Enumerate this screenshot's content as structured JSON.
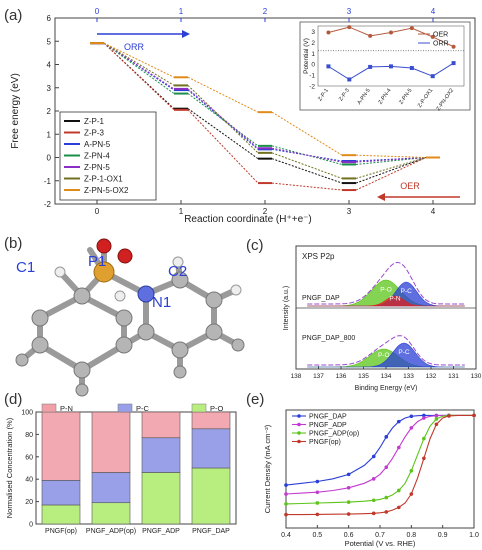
{
  "panels": {
    "a": {
      "label": "(a)"
    },
    "b": {
      "label": "(b)"
    },
    "c": {
      "label": "(c)"
    },
    "d": {
      "label": "(d)"
    },
    "e": {
      "label": "(e)"
    }
  },
  "colors": {
    "axis_blue": "#2b3fd6",
    "tick_red": "#c0392b",
    "oer_line": "#b45a3c",
    "orr_line": "#3a4fd0",
    "p_n": "#f2a0a8",
    "p_c": "#9aa0e8",
    "p_o": "#b8ee80",
    "pngf_dap": "#2b3fd6",
    "pngf_adp": "#c23ad0",
    "pngf_adp_op": "#5cc41a",
    "pngf_op": "#c0392b"
  },
  "chart_data": [
    {
      "id": "a",
      "type": "line",
      "xlabel": "Reaction coordinate (H⁺+e⁻)",
      "ylabel": "Free energy (eV)",
      "x_top_ticks": [
        "0",
        "1",
        "2",
        "3",
        "4"
      ],
      "x_bottom_ticks": [
        "0",
        "1",
        "2",
        "3",
        "4"
      ],
      "y_ticks": [
        "-2",
        "-1",
        "0",
        "1",
        "2",
        "3",
        "4",
        "5",
        "6"
      ],
      "ylim": [
        -2,
        6
      ],
      "xlim": [
        -0.5,
        4.5
      ],
      "arrow_labels": {
        "orr": "ORR",
        "oer": "OER"
      },
      "series": [
        {
          "name": "Z-P-1",
          "color": "#111111",
          "values": [
            4.92,
            2.1,
            -0.05,
            -1.1,
            0
          ]
        },
        {
          "name": "Z-P-3",
          "color": "#c0392b",
          "values": [
            4.92,
            2.05,
            -1.1,
            -1.4,
            0
          ]
        },
        {
          "name": "A-PN-5",
          "color": "#2b3fd6",
          "values": [
            4.92,
            2.9,
            0.35,
            -0.15,
            0
          ]
        },
        {
          "name": "Z-PN-4",
          "color": "#1b8f4a",
          "values": [
            4.92,
            2.75,
            0.5,
            -0.3,
            0
          ]
        },
        {
          "name": "Z-PN-5",
          "color": "#8a2fc4",
          "values": [
            4.92,
            2.95,
            0.4,
            -0.2,
            0
          ]
        },
        {
          "name": "Z-P-1-OX1",
          "color": "#707020",
          "values": [
            4.92,
            3.1,
            0.2,
            -0.9,
            0
          ]
        },
        {
          "name": "Z-PN-5-OX2",
          "color": "#e08a1a",
          "values": [
            4.92,
            3.45,
            1.95,
            0.1,
            0
          ]
        }
      ],
      "inset": {
        "ylabel": "Potential (V)",
        "y_ticks": [
          "-2",
          "-1",
          "0",
          "1",
          "2",
          "3"
        ],
        "ylim": [
          -2,
          3.5
        ],
        "categories": [
          "Z-P-1",
          "Z-P-3",
          "A-PN-5",
          "Z-PN-4",
          "Z-PN-5",
          "Z-P-OX1",
          "Z-PN-OX2"
        ],
        "series": [
          {
            "name": "OER",
            "values": [
              2.9,
              3.4,
              2.6,
              2.9,
              3.3,
              2.5,
              1.6
            ]
          },
          {
            "name": "ORR",
            "values": [
              -0.2,
              -1.4,
              -0.25,
              -0.2,
              -0.35,
              -1.1,
              0.1
            ]
          }
        ],
        "reference_line": 1.23
      }
    },
    {
      "id": "c",
      "type": "area",
      "title": "XPS P2p",
      "xlabel": "Binding Energy (eV)",
      "ylabel": "Intensity (a.u.)",
      "x_ticks": [
        "138",
        "137",
        "136",
        "135",
        "134",
        "133",
        "132",
        "131",
        "130"
      ],
      "xlim": [
        138,
        130
      ],
      "spectra": [
        {
          "name": "PNGF_DAP",
          "components": [
            {
              "name": "P-O",
              "center": 134.0,
              "color": "#5cc41a"
            },
            {
              "name": "P-C",
              "center": 133.1,
              "color": "#2b3fd6"
            },
            {
              "name": "P-N",
              "center": 133.6,
              "color": "#e02020"
            }
          ]
        },
        {
          "name": "PNGF_DAP_800",
          "components": [
            {
              "name": "P-O",
              "center": 134.1,
              "color": "#5cc41a"
            },
            {
              "name": "P-C",
              "center": 133.2,
              "color": "#2b3fd6"
            }
          ]
        }
      ]
    },
    {
      "id": "d",
      "type": "bar",
      "ylabel": "Normalised Concentration (%)",
      "categories": [
        "PNGF(op)",
        "PNGF_ADP(op)",
        "PNGF_ADP",
        "PNGF_DAP"
      ],
      "y_ticks": [
        "0",
        "20",
        "40",
        "60",
        "80",
        "100"
      ],
      "ylim": [
        0,
        100
      ],
      "stacked": true,
      "series": [
        {
          "name": "P-O",
          "values": [
            17,
            19,
            46,
            50
          ]
        },
        {
          "name": "P-C",
          "values": [
            22,
            27,
            31,
            35
          ]
        },
        {
          "name": "P-N",
          "values": [
            61,
            54,
            23,
            15
          ]
        }
      ]
    },
    {
      "id": "e",
      "type": "line",
      "xlabel": "Potential (V vs. RHE)",
      "ylabel": "Current Density (mA cm⁻²)",
      "x_ticks": [
        "0.4",
        "0.5",
        "0.6",
        "0.7",
        "0.8",
        "0.9",
        "1.0"
      ],
      "xlim": [
        0.4,
        1.0
      ],
      "ylim": [
        -6.3,
        0.3
      ],
      "x": [
        0.4,
        0.45,
        0.5,
        0.55,
        0.6,
        0.65,
        0.68,
        0.7,
        0.72,
        0.74,
        0.76,
        0.78,
        0.8,
        0.82,
        0.84,
        0.86,
        0.88,
        0.9,
        0.92,
        0.95,
        1.0
      ],
      "series": [
        {
          "name": "PNGF_DAP",
          "values": [
            -3.9,
            -3.8,
            -3.7,
            -3.55,
            -3.3,
            -2.8,
            -2.3,
            -1.8,
            -1.2,
            -0.7,
            -0.35,
            -0.15,
            -0.05,
            -0.02,
            0,
            0,
            0,
            0,
            0,
            0,
            0
          ]
        },
        {
          "name": "PNGF_ADP",
          "values": [
            -4.4,
            -4.35,
            -4.3,
            -4.2,
            -4.05,
            -3.8,
            -3.55,
            -3.3,
            -2.9,
            -2.4,
            -1.8,
            -1.2,
            -0.7,
            -0.35,
            -0.15,
            -0.05,
            -0.02,
            0,
            0,
            0,
            0
          ]
        },
        {
          "name": "PNGF_ADP(op)",
          "values": [
            -4.95,
            -4.93,
            -4.9,
            -4.88,
            -4.85,
            -4.8,
            -4.75,
            -4.7,
            -4.6,
            -4.45,
            -4.2,
            -3.8,
            -3.1,
            -2.2,
            -1.3,
            -0.6,
            -0.2,
            -0.05,
            0,
            0,
            0
          ]
        },
        {
          "name": "PNGF(op)",
          "values": [
            -5.55,
            -5.55,
            -5.54,
            -5.53,
            -5.52,
            -5.5,
            -5.48,
            -5.45,
            -5.4,
            -5.3,
            -5.15,
            -4.9,
            -4.4,
            -3.5,
            -2.4,
            -1.3,
            -0.5,
            -0.15,
            -0.03,
            0,
            0
          ]
        }
      ]
    }
  ],
  "molecule": {
    "atom_labels": {
      "c1": "C1",
      "p1": "P1",
      "c2": "C2",
      "n1": "N1"
    }
  },
  "legend_d": {
    "p_n": "P-N",
    "p_c": "P-C",
    "p_o": "P-O"
  }
}
